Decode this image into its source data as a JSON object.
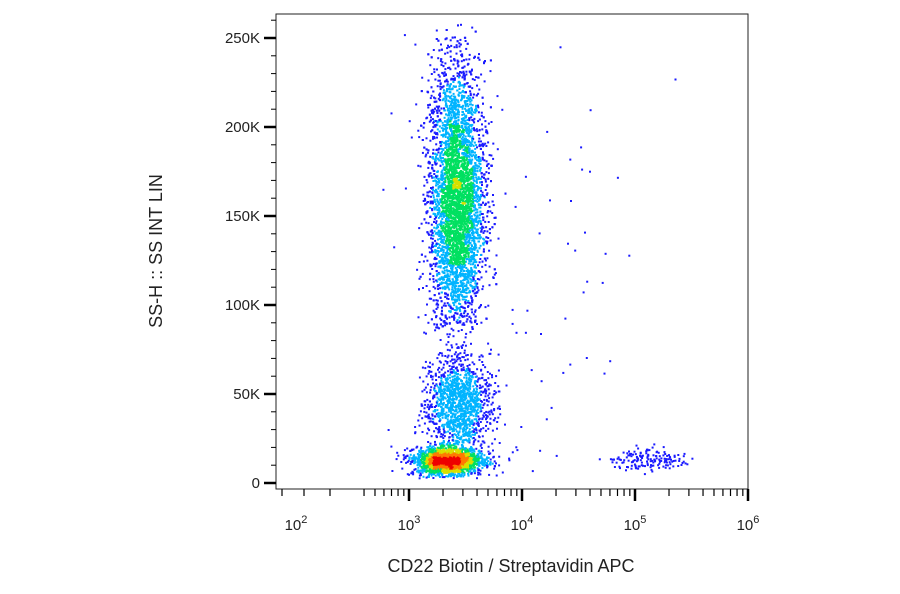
{
  "chart_data": {
    "type": "scatter",
    "title": "",
    "xlabel": "CD22 Biotin / Streptavidin APC",
    "ylabel": "SS-H :: SS INT LIN",
    "x_scale": "log",
    "y_scale": "linear",
    "xlim": [
      0,
      1000000
    ],
    "ylim": [
      0,
      260000
    ],
    "x_ticks": [
      {
        "value": 100,
        "base": "10",
        "exp": "2"
      },
      {
        "value": 1000,
        "base": "10",
        "exp": "3"
      },
      {
        "value": 10000,
        "base": "10",
        "exp": "4"
      },
      {
        "value": 100000,
        "base": "10",
        "exp": "5"
      },
      {
        "value": 1000000,
        "base": "10",
        "exp": "6"
      }
    ],
    "y_ticks": [
      {
        "value": 0,
        "label": "0"
      },
      {
        "value": 50000,
        "label": "50K"
      },
      {
        "value": 100000,
        "label": "100K"
      },
      {
        "value": 150000,
        "label": "150K"
      },
      {
        "value": 200000,
        "label": "200K"
      },
      {
        "value": 250000,
        "label": "250K"
      }
    ],
    "colormap": [
      "#1a1aff",
      "#00b4ff",
      "#00e060",
      "#d8e000",
      "#ff7a00",
      "#ee0000"
    ],
    "populations": [
      {
        "name": "main",
        "x_center": 2600,
        "x_log_sd": 0.12,
        "y_center": 160000,
        "y_sd": 38000,
        "y_min": 85000,
        "y_max": 258000,
        "count": 5200
      },
      {
        "name": "mid",
        "x_center": 2700,
        "x_log_sd": 0.14,
        "y_center": 45000,
        "y_sd": 14000,
        "y_min": 22000,
        "y_max": 90000,
        "count": 1300
      },
      {
        "name": "low",
        "x_center": 2200,
        "x_log_sd": 0.15,
        "y_center": 13000,
        "y_sd": 3800,
        "y_min": 3000,
        "y_max": 26000,
        "count": 2200
      },
      {
        "name": "low-positive",
        "x_center": 130000,
        "x_log_sd": 0.17,
        "y_center": 13500,
        "y_sd": 3000,
        "y_min": 5000,
        "y_max": 24000,
        "count": 160
      },
      {
        "name": "scatter",
        "x_center": 9000,
        "x_log_sd": 0.55,
        "y_center": 120000,
        "y_sd": 80000,
        "y_min": 5000,
        "y_max": 255000,
        "count": 70
      }
    ]
  }
}
